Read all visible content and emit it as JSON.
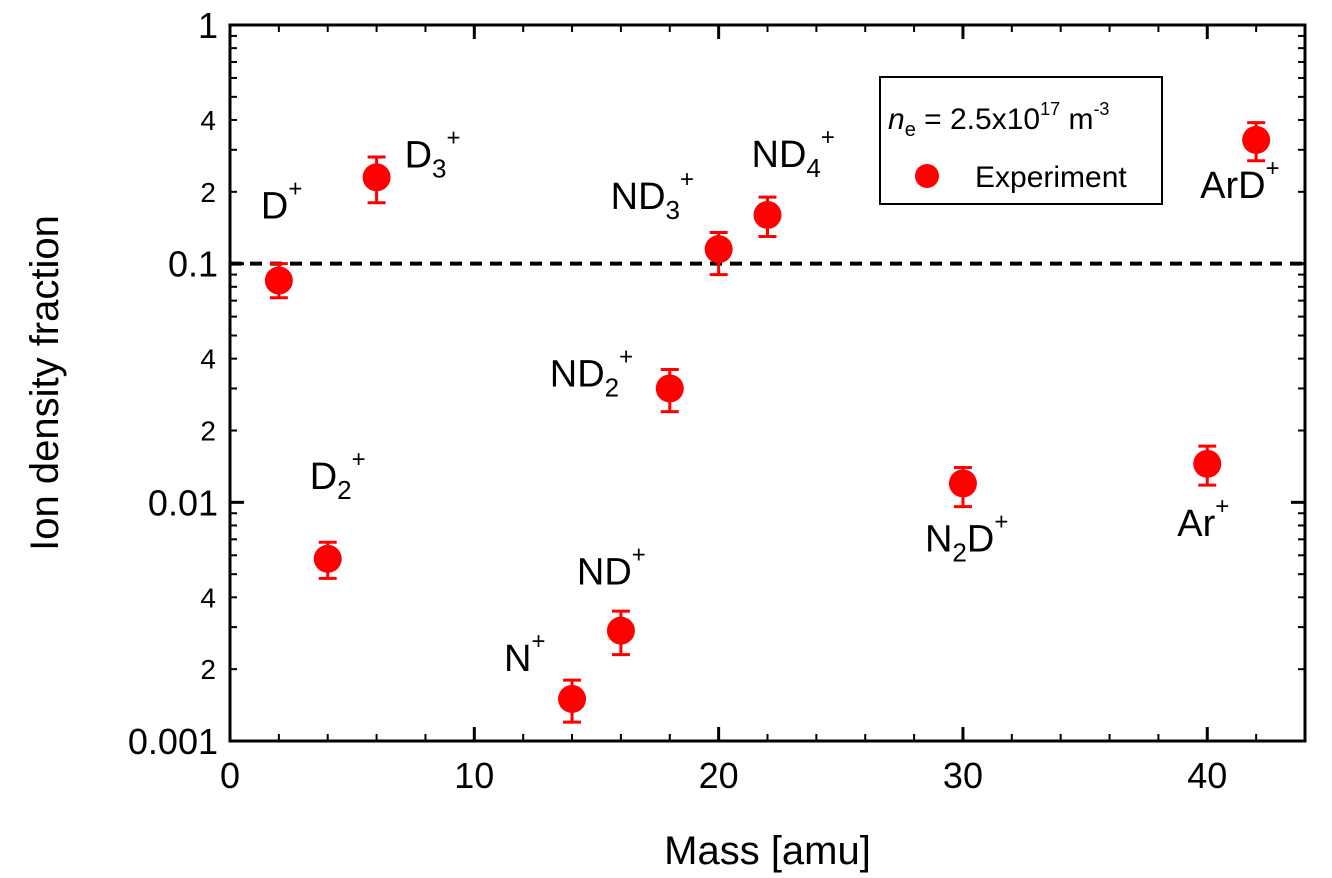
{
  "chart_data": {
    "type": "scatter",
    "xlabel": "Mass [amu]",
    "ylabel": "Ion density fraction",
    "xlim": [
      0,
      44
    ],
    "ylim": [
      0.001,
      1
    ],
    "y_scale": "log",
    "x_ticks": [
      "0",
      "10",
      "20",
      "30",
      "40"
    ],
    "y_ticks_major": [
      "0.001",
      "0.01",
      "0.1",
      "1"
    ],
    "y_ticks_minor": [
      "2",
      "4"
    ],
    "reference_line": {
      "y": 0.1,
      "style": "dashed"
    },
    "legend": {
      "position": "top-right",
      "condition": {
        "var": "n",
        "sub": "e",
        "text": " = 2.5x10",
        "exp": "17",
        "unit": " m",
        "unit_exp": "-3"
      },
      "entries": [
        {
          "name": "Experiment",
          "color": "#ff0000",
          "marker": "circle"
        }
      ]
    },
    "series": [
      {
        "name": "Experiment",
        "color": "#ff0000",
        "points": [
          {
            "x": 2,
            "y": 0.085,
            "yerr_low": 0.072,
            "yerr_high": 0.1,
            "label_base": "D",
            "label_sub": "",
            "label_sup": "+"
          },
          {
            "x": 4,
            "y": 0.0058,
            "yerr_low": 0.0048,
            "yerr_high": 0.0068,
            "label_base": "D",
            "label_sub": "2",
            "label_sup": "+"
          },
          {
            "x": 6,
            "y": 0.23,
            "yerr_low": 0.18,
            "yerr_high": 0.28,
            "label_base": "D",
            "label_sub": "3",
            "label_sup": "+"
          },
          {
            "x": 14,
            "y": 0.0015,
            "yerr_low": 0.0012,
            "yerr_high": 0.0018,
            "label_base": "N",
            "label_sub": "",
            "label_sup": "+"
          },
          {
            "x": 16,
            "y": 0.0029,
            "yerr_low": 0.0023,
            "yerr_high": 0.0035,
            "label_base": "ND",
            "label_sub": "",
            "label_sup": "+"
          },
          {
            "x": 18,
            "y": 0.03,
            "yerr_low": 0.024,
            "yerr_high": 0.036,
            "label_base": "ND",
            "label_sub": "2",
            "label_sup": "+"
          },
          {
            "x": 20,
            "y": 0.115,
            "yerr_low": 0.09,
            "yerr_high": 0.135,
            "label_base": "ND",
            "label_sub": "3",
            "label_sup": "+"
          },
          {
            "x": 22,
            "y": 0.16,
            "yerr_low": 0.13,
            "yerr_high": 0.19,
            "label_base": "ND",
            "label_sub": "4",
            "label_sup": "+"
          },
          {
            "x": 30,
            "y": 0.012,
            "yerr_low": 0.0096,
            "yerr_high": 0.014,
            "label_base": "N",
            "label_sub": "2",
            "label_sup": "",
            "label_tail": "D",
            "label_tail_sup": "+"
          },
          {
            "x": 40,
            "y": 0.0145,
            "yerr_low": 0.0118,
            "yerr_high": 0.0172,
            "label_base": "Ar",
            "label_sub": "",
            "label_sup": "+"
          },
          {
            "x": 42,
            "y": 0.33,
            "yerr_low": 0.27,
            "yerr_high": 0.39,
            "label_base": "ArD",
            "label_sub": "",
            "label_sup": "+"
          }
        ]
      }
    ]
  }
}
